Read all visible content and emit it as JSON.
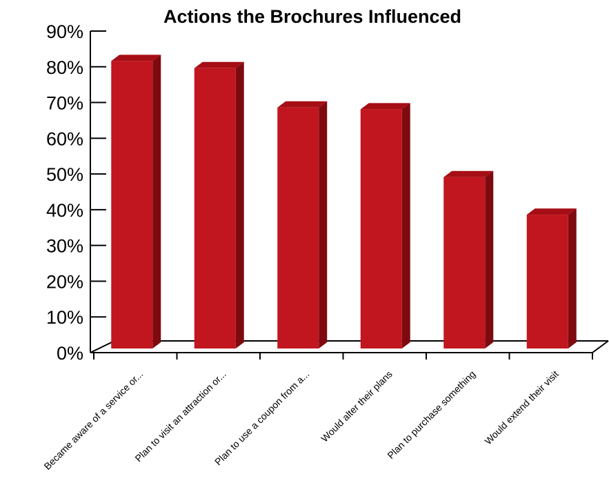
{
  "chart_data": {
    "type": "bar",
    "title": "Actions the Brochures Influenced",
    "xlabel": "",
    "ylabel": "",
    "categories": [
      "Became aware of a service or...",
      "Plan to visit an attraction or...",
      "Plan to use a coupon from a...",
      "Would alter their plans",
      "Plan to purchase something",
      "Would extend their visit"
    ],
    "values": [
      82,
      80,
      69,
      68.5,
      49.5,
      39
    ],
    "ylim": [
      0,
      90
    ],
    "yticks": [
      "0%",
      "10%",
      "20%",
      "30%",
      "40%",
      "50%",
      "60%",
      "70%",
      "80%",
      "90%"
    ],
    "grid": false,
    "legend": "none",
    "style": "3d",
    "colors": {
      "bar_front": "#C1161F",
      "bar_side": "#7E0A0F",
      "bar_top": "#A60E16",
      "axis": "#000000"
    }
  }
}
